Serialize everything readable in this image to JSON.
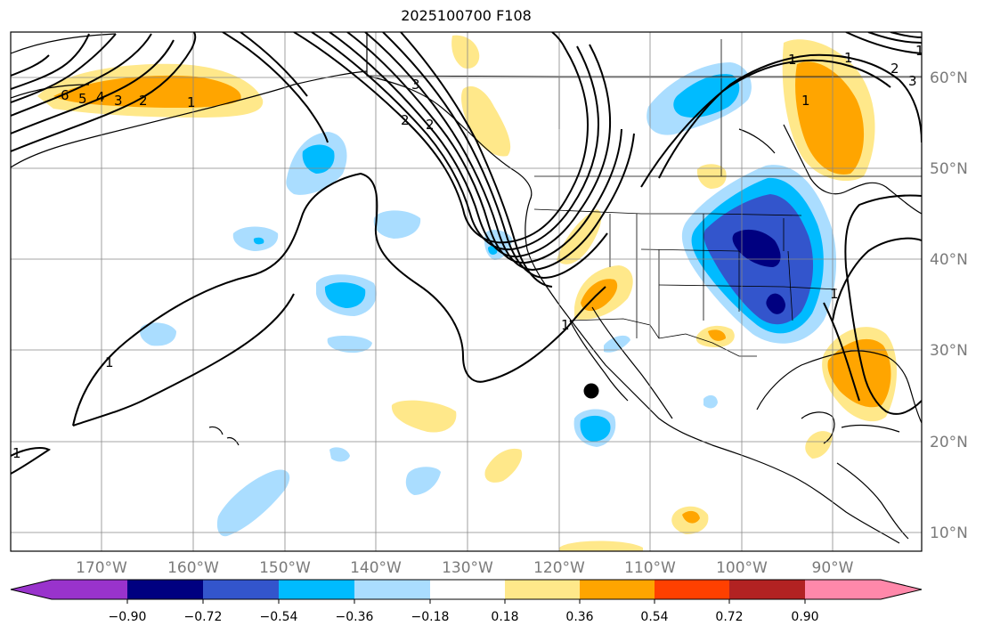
{
  "title": "2025100700 F108",
  "map": {
    "lon_ticks": [
      "170°W",
      "160°W",
      "150°W",
      "140°W",
      "130°W",
      "120°W",
      "110°W",
      "100°W",
      "90°W"
    ],
    "lat_ticks": [
      "60°N",
      "50°N",
      "40°N",
      "30°N",
      "20°N",
      "10°N"
    ],
    "contour_labels": [
      "6",
      "5",
      "4",
      "3",
      "2",
      "1",
      "1",
      "1",
      "1",
      "1",
      "1",
      "2",
      "3",
      "2",
      "1",
      "1",
      "1",
      "2",
      "3"
    ],
    "marker": "black-dot"
  },
  "colorbar": {
    "ticks": [
      "−0.90",
      "−0.72",
      "−0.54",
      "−0.36",
      "−0.18",
      "0.18",
      "0.36",
      "0.54",
      "0.72",
      "0.90"
    ],
    "colors": [
      "#9933cc",
      "#000080",
      "#3355cc",
      "#00bbff",
      "#aaddff",
      "#ffffff",
      "#ffe88a",
      "#ffa500",
      "#ff4000",
      "#b22222",
      "#ff88aa"
    ]
  }
}
